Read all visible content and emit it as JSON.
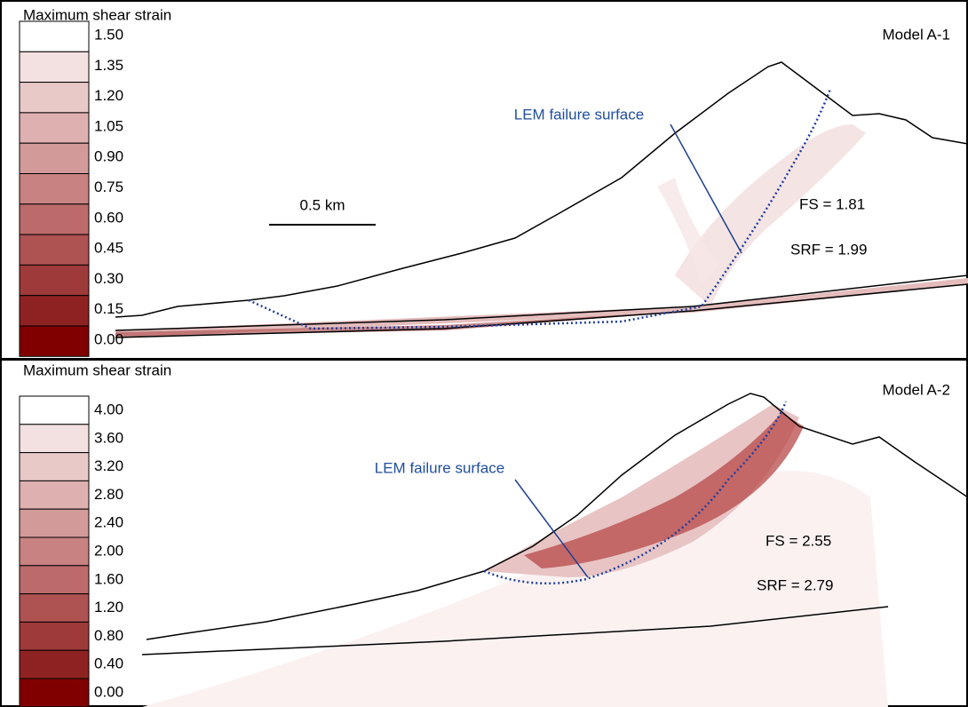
{
  "panels": [
    {
      "legend_title": "Maximum shear strain",
      "legend_labels": [
        "1.50",
        "1.35",
        "1.20",
        "1.05",
        "0.90",
        "0.75",
        "0.60",
        "0.45",
        "0.30",
        "0.15",
        "0.00"
      ],
      "model": "Model A-1",
      "annotation": "LEM failure surface",
      "fs": "FS = 1.81",
      "srf": "SRF = 1.99",
      "scale_bar": "0.5 km"
    },
    {
      "legend_title": "Maximum shear strain",
      "legend_labels": [
        "4.00",
        "3.60",
        "3.20",
        "2.80",
        "2.40",
        "2.00",
        "1.60",
        "1.20",
        "0.80",
        "0.40",
        "0.00"
      ],
      "model": "Model A-2",
      "annotation": "LEM failure surface",
      "fs": "FS = 2.55",
      "srf": "SRF = 2.79"
    }
  ],
  "legend_colors": [
    "#ffffff",
    "#f3e0e0",
    "#e9c8c8",
    "#deb0b0",
    "#d39a9a",
    "#c88282",
    "#bc6a6a",
    "#ae5252",
    "#9f3a3a",
    "#8e2222",
    "#800000"
  ]
}
